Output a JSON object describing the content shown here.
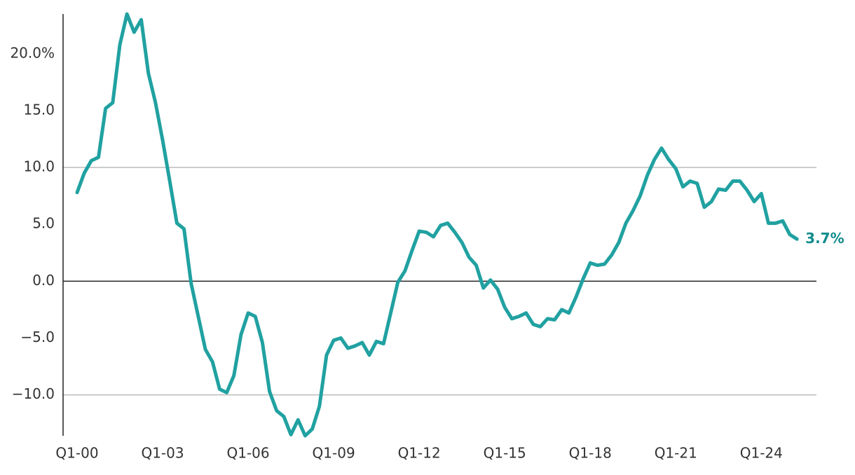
{
  "chart_data": {
    "type": "line",
    "categories": [
      "Q1-00",
      null,
      null,
      null,
      null,
      null,
      null,
      null,
      null,
      null,
      null,
      null,
      "Q1-03",
      null,
      null,
      null,
      null,
      null,
      null,
      null,
      null,
      null,
      null,
      null,
      "Q1-06",
      null,
      null,
      null,
      null,
      null,
      null,
      null,
      null,
      null,
      null,
      null,
      "Q1-09",
      null,
      null,
      null,
      null,
      null,
      null,
      null,
      null,
      null,
      null,
      null,
      "Q1-12",
      null,
      null,
      null,
      null,
      null,
      null,
      null,
      null,
      null,
      null,
      null,
      "Q1-15",
      null,
      null,
      null,
      null,
      null,
      null,
      null,
      null,
      null,
      null,
      null,
      "Q1-18",
      null,
      null,
      null,
      null,
      null,
      null,
      null,
      null,
      null,
      null,
      null,
      "Q1-21",
      null,
      null,
      null,
      null,
      null,
      null,
      null,
      null,
      null,
      null,
      null,
      "Q1-24",
      null,
      null,
      null,
      null,
      null
    ],
    "series": [
      {
        "color": "#21a1a1",
        "values": [
          7.8,
          9.5,
          10.6,
          10.9,
          15.2,
          15.7,
          20.8,
          23.5,
          21.9,
          23.0,
          18.3,
          15.7,
          12.4,
          8.8,
          5.1,
          4.6,
          -0.2,
          -3.1,
          -6.0,
          -7.1,
          -9.5,
          -9.8,
          -8.3,
          -4.7,
          -2.8,
          -3.1,
          -5.4,
          -9.7,
          -11.4,
          -11.9,
          -13.5,
          -12.2,
          -13.6,
          -13.0,
          -11.0,
          -6.5,
          -5.2,
          -5.0,
          -5.9,
          -5.7,
          -5.4,
          -6.5,
          -5.3,
          -5.5,
          -2.8,
          -0.1,
          0.9,
          2.7,
          4.4,
          4.3,
          3.9,
          4.9,
          5.1,
          4.3,
          3.4,
          2.1,
          1.4,
          -0.6,
          0.1,
          -0.7,
          -2.3,
          -3.3,
          -3.1,
          -2.8,
          -3.8,
          -4.0,
          -3.3,
          -3.4,
          -2.5,
          -2.8,
          -1.4,
          0.2,
          1.6,
          1.4,
          1.5,
          2.3,
          3.4,
          5.1,
          6.2,
          7.5,
          9.3,
          10.7,
          11.7,
          10.7,
          9.9,
          8.3,
          8.8,
          8.6,
          6.5,
          7.0,
          8.1,
          8.0,
          8.8,
          8.8,
          8.0,
          7.0,
          7.7,
          5.1,
          5.1,
          5.3,
          4.1,
          3.7
        ],
        "value_labels": [
          null,
          null,
          null,
          null,
          null,
          null,
          null,
          null,
          null,
          null,
          null,
          null,
          null,
          null,
          null,
          null,
          null,
          null,
          null,
          null,
          null,
          null,
          null,
          null,
          null,
          null,
          null,
          null,
          null,
          null,
          null,
          null,
          null,
          null,
          null,
          null,
          null,
          null,
          null,
          null,
          null,
          null,
          null,
          null,
          null,
          null,
          null,
          null,
          null,
          null,
          null,
          null,
          null,
          null,
          null,
          null,
          null,
          null,
          null,
          null,
          null,
          null,
          null,
          null,
          null,
          null,
          null,
          null,
          null,
          null,
          null,
          null,
          null,
          null,
          null,
          null,
          null,
          null,
          null,
          null,
          null,
          null,
          null,
          null,
          null,
          null,
          null,
          null,
          null,
          null,
          null,
          null,
          null,
          null,
          null,
          null,
          null,
          null,
          null,
          null,
          null,
          "3.7%"
        ],
        "label_color": "#138c8c"
      }
    ],
    "ylim": [
      -13.6,
      23.5
    ],
    "yticks": [
      {
        "value": 20,
        "label": "20.0%"
      },
      {
        "value": 15,
        "label": "15.0"
      },
      {
        "value": 10,
        "label": "10.0"
      },
      {
        "value": 5,
        "label": "5.0"
      },
      {
        "value": 0,
        "label": "0.0"
      },
      {
        "value": -5,
        "label": "−5.0"
      },
      {
        "value": -10,
        "label": "−10.0"
      }
    ],
    "gridlines": [
      10,
      -10
    ],
    "zero_line": true
  }
}
